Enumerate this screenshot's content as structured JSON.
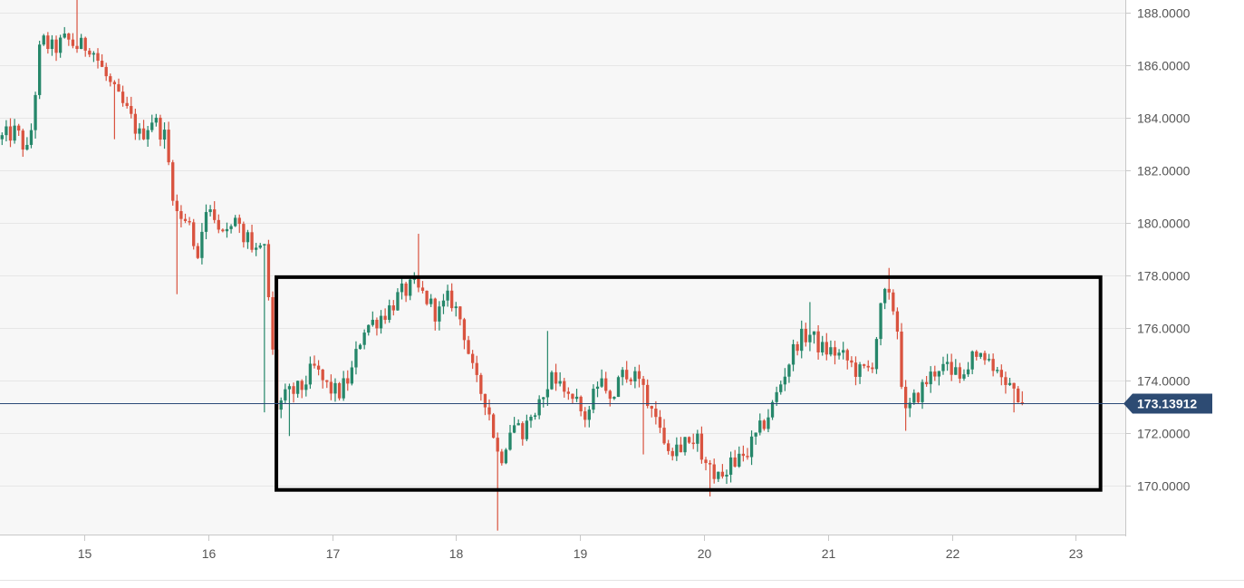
{
  "chart_data": {
    "type": "candlestick",
    "x_ticks": [
      "15",
      "16",
      "17",
      "18",
      "19",
      "20",
      "21",
      "22",
      "23"
    ],
    "y_ticks": [
      "170.0000",
      "172.0000",
      "174.0000",
      "176.0000",
      "178.0000",
      "180.0000",
      "182.0000",
      "184.0000",
      "186.0000",
      "188.0000"
    ],
    "ylim": [
      168.15,
      188.5
    ],
    "xlim": [
      14.32,
      23.4
    ],
    "grid": true,
    "current_price": {
      "value": 173.13912,
      "label": "173.13912"
    },
    "range_box": {
      "x_start": 16.55,
      "x_end": 23.2,
      "y_low": 169.85,
      "y_high": 177.95
    },
    "colors": {
      "up": "#26876a",
      "down": "#d9533f",
      "line": "#2b4a78",
      "tag": "#2d4b73",
      "box": "#000000",
      "grid": "#e6e6e6",
      "background": "#f7f7f7"
    },
    "anchors": [
      [
        14.32,
        183.2
      ],
      [
        14.45,
        183.5
      ],
      [
        14.55,
        182.6
      ],
      [
        14.65,
        187.0
      ],
      [
        14.75,
        186.6
      ],
      [
        14.85,
        187.0
      ],
      [
        14.95,
        186.7
      ],
      [
        15.05,
        186.8
      ],
      [
        15.15,
        185.8
      ],
      [
        15.25,
        184.9
      ],
      [
        15.35,
        184.2
      ],
      [
        15.45,
        183.3
      ],
      [
        15.55,
        184.0
      ],
      [
        15.65,
        183.3
      ],
      [
        15.7,
        181.6
      ],
      [
        15.75,
        180.3
      ],
      [
        15.85,
        179.9
      ],
      [
        15.9,
        178.5
      ],
      [
        16.0,
        180.8
      ],
      [
        16.1,
        180.0
      ],
      [
        16.2,
        180.0
      ],
      [
        16.3,
        179.4
      ],
      [
        16.4,
        178.9
      ],
      [
        16.45,
        179.2
      ],
      [
        16.5,
        176.5
      ],
      [
        16.55,
        173.0
      ],
      [
        16.65,
        173.5
      ],
      [
        16.75,
        173.7
      ],
      [
        16.85,
        174.5
      ],
      [
        16.95,
        173.8
      ],
      [
        17.05,
        173.5
      ],
      [
        17.15,
        174.2
      ],
      [
        17.25,
        176.0
      ],
      [
        17.35,
        176.3
      ],
      [
        17.45,
        176.7
      ],
      [
        17.55,
        177.3
      ],
      [
        17.65,
        177.6
      ],
      [
        17.75,
        177.2
      ],
      [
        17.85,
        176.5
      ],
      [
        17.95,
        177.2
      ],
      [
        18.05,
        176.2
      ],
      [
        18.15,
        174.0
      ],
      [
        18.25,
        173.2
      ],
      [
        18.35,
        170.9
      ],
      [
        18.45,
        172.4
      ],
      [
        18.55,
        172.0
      ],
      [
        18.65,
        173.2
      ],
      [
        18.75,
        174.1
      ],
      [
        18.85,
        174.1
      ],
      [
        18.95,
        173.2
      ],
      [
        19.05,
        172.6
      ],
      [
        19.15,
        173.9
      ],
      [
        19.25,
        173.3
      ],
      [
        19.35,
        174.3
      ],
      [
        19.45,
        174.2
      ],
      [
        19.55,
        173.3
      ],
      [
        19.65,
        172.2
      ],
      [
        19.75,
        171.4
      ],
      [
        19.85,
        171.8
      ],
      [
        19.95,
        171.7
      ],
      [
        20.05,
        170.5
      ],
      [
        20.15,
        170.5
      ],
      [
        20.25,
        171.0
      ],
      [
        20.35,
        171.3
      ],
      [
        20.45,
        172.1
      ],
      [
        20.55,
        173.0
      ],
      [
        20.65,
        174.3
      ],
      [
        20.75,
        175.5
      ],
      [
        20.85,
        175.8
      ],
      [
        20.95,
        175.2
      ],
      [
        21.05,
        175.1
      ],
      [
        21.15,
        174.8
      ],
      [
        21.25,
        174.3
      ],
      [
        21.35,
        174.5
      ],
      [
        21.45,
        177.3
      ],
      [
        21.5,
        177.0
      ],
      [
        21.55,
        176.6
      ],
      [
        21.62,
        172.6
      ],
      [
        21.7,
        173.3
      ],
      [
        21.8,
        174.0
      ],
      [
        21.9,
        174.6
      ],
      [
        22.0,
        174.2
      ],
      [
        22.1,
        174.6
      ],
      [
        22.2,
        175.0
      ],
      [
        22.3,
        174.7
      ],
      [
        22.4,
        174.3
      ],
      [
        22.5,
        173.7
      ],
      [
        22.6,
        173.14
      ]
    ],
    "spikes": [
      [
        14.95,
        188.6
      ],
      [
        15.25,
        183.2
      ],
      [
        15.75,
        177.3
      ],
      [
        16.45,
        172.8
      ],
      [
        16.65,
        171.9
      ],
      [
        17.7,
        179.6
      ],
      [
        18.32,
        168.3
      ],
      [
        18.75,
        175.9
      ],
      [
        19.5,
        171.2
      ],
      [
        20.05,
        169.6
      ],
      [
        20.85,
        177.0
      ],
      [
        21.5,
        178.3
      ],
      [
        21.62,
        172.1
      ],
      [
        22.5,
        172.8
      ]
    ]
  }
}
